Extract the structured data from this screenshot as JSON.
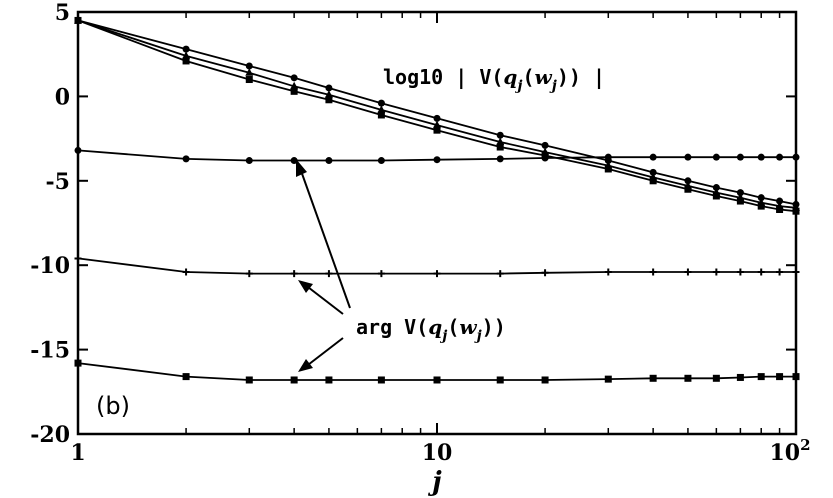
{
  "chart_data": {
    "type": "line",
    "title": "",
    "xlabel": "j",
    "ylabel": "",
    "xscale": "log",
    "xlim": [
      1,
      100
    ],
    "ylim": [
      -20,
      5
    ],
    "x_ticks": [
      {
        "value": 1,
        "label": "1"
      },
      {
        "value": 10,
        "label": "10"
      },
      {
        "value": 100,
        "label": "10",
        "sup": "2"
      }
    ],
    "y_ticks": [
      {
        "value": 5,
        "label": "5"
      },
      {
        "value": 0,
        "label": "0"
      },
      {
        "value": -5,
        "label": "-5"
      },
      {
        "value": -10,
        "label": "-10"
      },
      {
        "value": -15,
        "label": "-15"
      },
      {
        "value": -20,
        "label": "-20"
      }
    ],
    "grid": false,
    "panel_label": "(b)",
    "annotations": {
      "magnitude": {
        "prefix": "log10 | V(",
        "q": "q",
        "sub1": "j",
        "mid": "(",
        "w": "w",
        "sub2": "j",
        "suffix": ")) |"
      },
      "argument": {
        "prefix": "arg V(",
        "q": "q",
        "sub1": "j",
        "mid": "(",
        "w": "w",
        "sub2": "j",
        "suffix": "))"
      }
    },
    "series": [
      {
        "group": "magnitude",
        "marker": "circle",
        "x": [
          1,
          2,
          3,
          4,
          5,
          7,
          10,
          15,
          20,
          30,
          40,
          50,
          60,
          70,
          80,
          90,
          100
        ],
        "y": [
          4.5,
          2.8,
          1.8,
          1.1,
          0.5,
          -0.4,
          -1.3,
          -2.3,
          -2.9,
          -3.8,
          -4.5,
          -5.0,
          -5.4,
          -5.7,
          -6.0,
          -6.2,
          -6.4
        ]
      },
      {
        "group": "magnitude",
        "marker": "triangle",
        "x": [
          1,
          2,
          3,
          4,
          5,
          7,
          10,
          15,
          20,
          30,
          40,
          50,
          60,
          70,
          80,
          90,
          100
        ],
        "y": [
          4.5,
          2.4,
          1.4,
          0.6,
          0.1,
          -0.8,
          -1.7,
          -2.7,
          -3.3,
          -4.1,
          -4.8,
          -5.3,
          -5.7,
          -6.0,
          -6.3,
          -6.5,
          -6.6
        ]
      },
      {
        "group": "magnitude",
        "marker": "square",
        "x": [
          1,
          2,
          3,
          4,
          5,
          7,
          10,
          15,
          20,
          30,
          40,
          50,
          60,
          70,
          80,
          90,
          100
        ],
        "y": [
          4.5,
          2.1,
          1.0,
          0.3,
          -0.2,
          -1.1,
          -2.0,
          -3.0,
          -3.5,
          -4.3,
          -5.0,
          -5.5,
          -5.9,
          -6.2,
          -6.5,
          -6.7,
          -6.8
        ]
      },
      {
        "group": "argument",
        "marker": "circle",
        "x": [
          1,
          2,
          3,
          4,
          5,
          7,
          10,
          15,
          20,
          30,
          40,
          50,
          60,
          70,
          80,
          90,
          100
        ],
        "y": [
          -3.2,
          -3.7,
          -3.8,
          -3.8,
          -3.8,
          -3.8,
          -3.75,
          -3.7,
          -3.65,
          -3.6,
          -3.6,
          -3.6,
          -3.6,
          -3.6,
          -3.6,
          -3.6,
          -3.6
        ]
      },
      {
        "group": "argument",
        "marker": "cross",
        "x": [
          1,
          2,
          3,
          4,
          5,
          7,
          10,
          15,
          20,
          30,
          40,
          50,
          60,
          70,
          80,
          90,
          100
        ],
        "y": [
          -9.6,
          -10.4,
          -10.5,
          -10.5,
          -10.5,
          -10.5,
          -10.5,
          -10.5,
          -10.45,
          -10.4,
          -10.4,
          -10.4,
          -10.4,
          -10.4,
          -10.4,
          -10.4,
          -10.4
        ]
      },
      {
        "group": "argument",
        "marker": "square",
        "x": [
          1,
          2,
          3,
          4,
          5,
          7,
          10,
          15,
          20,
          30,
          40,
          50,
          60,
          70,
          80,
          90,
          100
        ],
        "y": [
          -15.8,
          -16.6,
          -16.8,
          -16.8,
          -16.8,
          -16.8,
          -16.8,
          -16.8,
          -16.8,
          -16.75,
          -16.7,
          -16.7,
          -16.7,
          -16.65,
          -16.6,
          -16.6,
          -16.6
        ]
      }
    ]
  }
}
